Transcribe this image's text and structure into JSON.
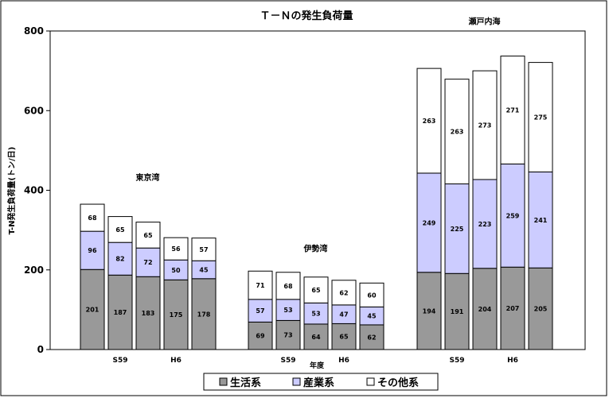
{
  "chart_data": {
    "type": "bar",
    "stacked": true,
    "title": "Ｔ－Ｎの発生負荷量",
    "ylabel": "T-N発生負荷量(トン/日)",
    "xlabel": "年度",
    "ylim": [
      0,
      800
    ],
    "yticks": [
      0,
      200,
      400,
      600,
      800
    ],
    "grid": false,
    "legend_position": "bottom",
    "colors": {
      "生活系": "#999999",
      "産業系": "#ccccff",
      "その他系": "#ffffff"
    },
    "groups": [
      {
        "name": "東京湾",
        "x_labels": [
          "",
          "S59",
          "",
          "H6",
          ""
        ],
        "series": [
          {
            "name": "生活系",
            "values": [
              201,
              187,
              183,
              175,
              178
            ]
          },
          {
            "name": "産業系",
            "values": [
              96,
              82,
              72,
              50,
              45
            ]
          },
          {
            "name": "その他系",
            "values": [
              68,
              65,
              65,
              56,
              57
            ]
          }
        ]
      },
      {
        "name": "伊勢湾",
        "x_labels": [
          "",
          "S59",
          "",
          "H6",
          ""
        ],
        "series": [
          {
            "name": "生活系",
            "values": [
              69,
              73,
              64,
              65,
              62
            ]
          },
          {
            "name": "産業系",
            "values": [
              57,
              53,
              53,
              47,
              45
            ]
          },
          {
            "name": "その他系",
            "values": [
              71,
              68,
              65,
              62,
              60
            ]
          }
        ]
      },
      {
        "name": "瀬戸内海",
        "x_labels": [
          "",
          "S59",
          "",
          "H6",
          ""
        ],
        "series": [
          {
            "name": "生活系",
            "values": [
              194,
              191,
              204,
              207,
              205
            ]
          },
          {
            "name": "産業系",
            "values": [
              249,
              225,
              223,
              259,
              241
            ]
          },
          {
            "name": "その他系",
            "values": [
              263,
              263,
              273,
              271,
              275
            ]
          }
        ]
      }
    ],
    "legend": [
      "生活系",
      "産業系",
      "その他系"
    ]
  }
}
